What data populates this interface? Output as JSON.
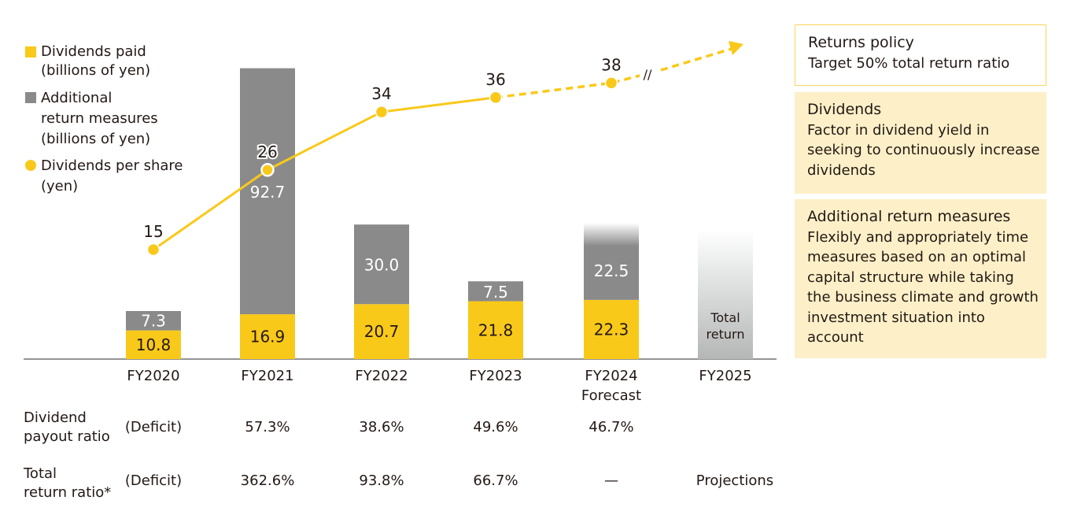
{
  "colors": {
    "dividends": "#F9C91A",
    "additional": "#8A8A8A",
    "dps": "#F9C91A",
    "policy_border": "#F9D45C",
    "box_fill": "#FDF0C8"
  },
  "legend": {
    "dividends_paid": "Dividends paid\n(billions of yen)",
    "additional": "Additional\nreturn measures\n(billions of yen)",
    "dps": "Dividends per share\n(yen)"
  },
  "chart_data": {
    "type": "bar+line",
    "categories": [
      "FY2020",
      "FY2021",
      "FY2022",
      "FY2023",
      "FY2024\nForecast",
      "FY2025"
    ],
    "series": [
      {
        "name": "Dividends paid (billions of yen)",
        "type": "stacked-bar",
        "values": [
          10.8,
          16.9,
          20.7,
          21.8,
          22.3,
          null
        ]
      },
      {
        "name": "Additional return measures (billions of yen)",
        "type": "stacked-bar",
        "values": [
          7.3,
          92.7,
          30.0,
          7.5,
          22.5,
          null
        ]
      },
      {
        "name": "Dividends per share (yen)",
        "type": "line",
        "values": [
          15,
          26,
          34,
          36,
          38,
          null
        ],
        "dashed_from": "FY2023"
      }
    ],
    "fy2025_bar_label": "Total\nreturn",
    "break_mark": "//",
    "grid": false
  },
  "table": {
    "rows": [
      {
        "label": "Dividend\npayout ratio",
        "values": [
          "(Deficit)",
          "57.3%",
          "38.6%",
          "49.6%",
          "46.7%",
          ""
        ]
      },
      {
        "label": "Total\nreturn ratio*",
        "values": [
          "(Deficit)",
          "362.6%",
          "93.8%",
          "66.7%",
          "—",
          "Projections"
        ]
      }
    ]
  },
  "panel": {
    "policy": {
      "title": "Returns policy",
      "text": "Target 50% total return ratio"
    },
    "dividends": {
      "title": "Dividends",
      "text": "Factor in dividend yield in seeking to continuously increase dividends"
    },
    "additional": {
      "title": "Additional return measures",
      "text": "Flexibly and appropriately time measures based on an optimal capital structure while taking the business climate and growth investment situation into account"
    }
  }
}
